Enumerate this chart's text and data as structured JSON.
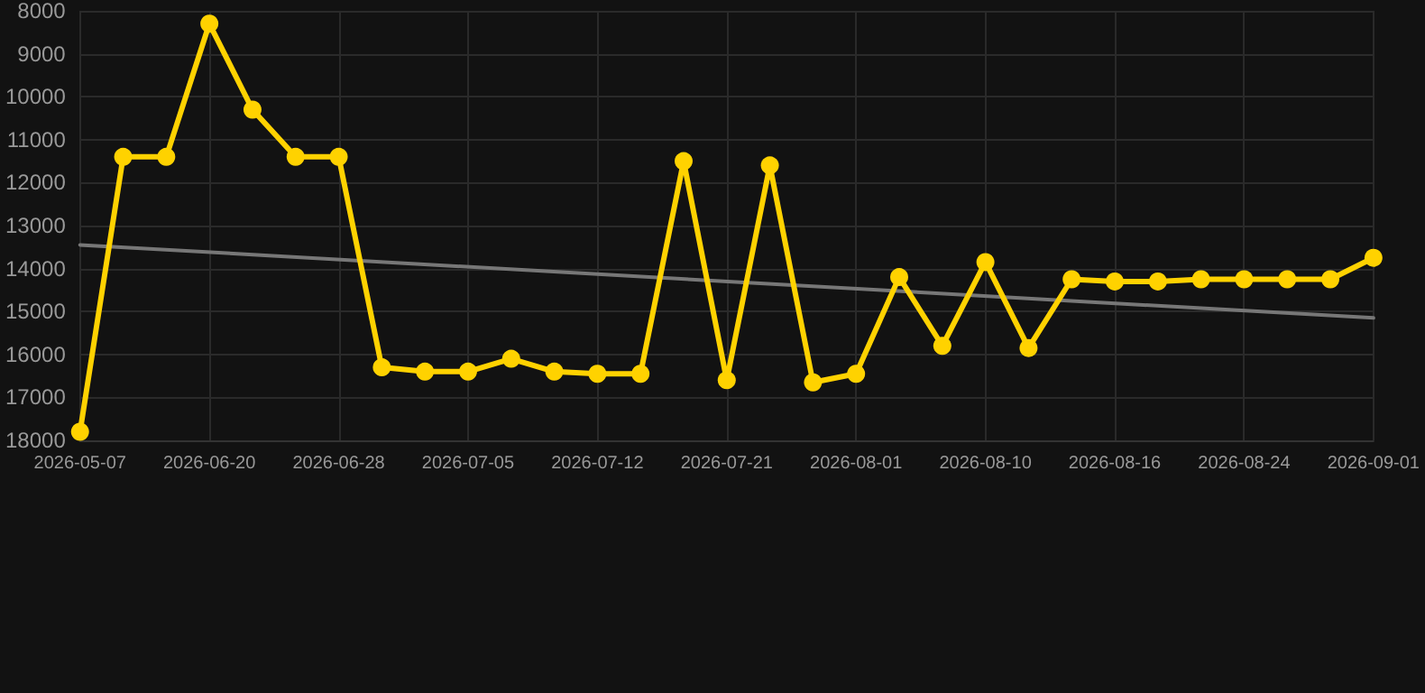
{
  "chart_data": {
    "type": "line",
    "categories": [
      "2026-05-07",
      null,
      null,
      "2026-06-20",
      null,
      null,
      "2026-06-28",
      null,
      null,
      "2026-07-05",
      null,
      null,
      "2026-07-12",
      null,
      null,
      "2026-07-21",
      null,
      null,
      "2026-08-01",
      null,
      null,
      "2026-08-10",
      null,
      null,
      "2026-08-16",
      null,
      null,
      "2026-08-24",
      null,
      null,
      "2026-09-01"
    ],
    "series": [
      {
        "color": "#ffd200",
        "marker": "circle",
        "values": [
          17800,
          11400,
          11400,
          8300,
          10300,
          11400,
          11400,
          16300,
          16400,
          16400,
          16100,
          16400,
          16450,
          16450,
          11500,
          16600,
          11600,
          16650,
          16450,
          14200,
          15800,
          13850,
          15850,
          14250,
          14300,
          14300,
          14250,
          14250,
          14250,
          14250,
          13750
        ]
      },
      {
        "color": "#777777",
        "marker": "none",
        "values": [
          13450,
          null,
          null,
          null,
          null,
          null,
          null,
          null,
          null,
          null,
          null,
          null,
          null,
          null,
          null,
          null,
          null,
          null,
          null,
          null,
          null,
          null,
          null,
          null,
          null,
          null,
          null,
          null,
          null,
          null,
          15150
        ]
      }
    ],
    "ylim": [
      18000,
      8000
    ],
    "yticks": [
      8000,
      9000,
      10000,
      11000,
      12000,
      13000,
      14000,
      15000,
      16000,
      17000,
      18000
    ],
    "grid": true
  }
}
